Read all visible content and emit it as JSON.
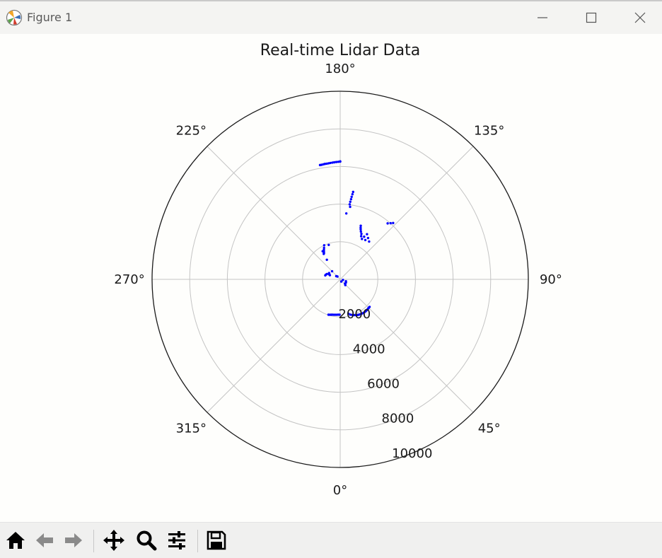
{
  "window": {
    "title": "Figure 1",
    "controls": [
      "minimize",
      "maximize",
      "close"
    ]
  },
  "toolbar": {
    "buttons": [
      {
        "name": "home",
        "icon": "home-icon"
      },
      {
        "name": "back",
        "icon": "arrow-left-icon"
      },
      {
        "name": "forward",
        "icon": "arrow-right-icon"
      },
      {
        "name": "pan",
        "icon": "move-icon"
      },
      {
        "name": "zoom",
        "icon": "magnifier-icon"
      },
      {
        "name": "configure-subplots",
        "icon": "sliders-icon"
      },
      {
        "name": "save",
        "icon": "floppy-disk-icon"
      }
    ]
  },
  "chart_data": {
    "type": "scatter",
    "projection": "polar",
    "title": "Real-time Lidar Data",
    "theta_zero_location": "S",
    "theta_direction": "counterclockwise",
    "theta_ticks": [
      {
        "deg": 0,
        "label": "0°"
      },
      {
        "deg": 45,
        "label": "45°"
      },
      {
        "deg": 90,
        "label": "90°"
      },
      {
        "deg": 135,
        "label": "135°"
      },
      {
        "deg": 180,
        "label": "180°"
      },
      {
        "deg": 225,
        "label": "225°"
      },
      {
        "deg": 270,
        "label": "270°"
      },
      {
        "deg": 315,
        "label": "315°"
      }
    ],
    "r_ticks": [
      {
        "value": 2000,
        "label": "2000"
      },
      {
        "value": 4000,
        "label": "4000"
      },
      {
        "value": 6000,
        "label": "6000"
      },
      {
        "value": 8000,
        "label": "8000"
      },
      {
        "value": 10000,
        "label": "10000"
      }
    ],
    "rlim": [
      0,
      10000
    ],
    "grid": true,
    "marker_color": "#0000ff",
    "series": [
      {
        "theta": [
          13.5,
          16.1,
          18.8,
          21.4,
          23.9,
          26.3,
          28.6,
          30.8,
          33.0,
          35.0,
          37.0,
          38.8,
          40.6,
          42.3,
          43.9,
          45.4,
          46.9,
          -1.0,
          -3.3,
          -5.6,
          -7.9,
          -10.1,
          -12.2,
          -14.3,
          -16.3,
          -18.3,
          71.6,
          48.0,
          59.0,
          26.6,
          42.0,
          78.7,
          63.4,
          142.6,
          146.0,
          149.3,
          147.4,
          150.7,
          151.7,
          154.1,
          155.0,
          156.6,
          157.7,
          158.4,
          159.0,
          136.8,
          138.1,
          139.7,
          171.6,
          171.8,
          172.1,
          172.3,
          172.6,
          172.8,
          172.2,
          174.7,
          180.0,
          180.0,
          180.9,
          181.9,
          182.9,
          183.8,
          184.8,
          185.7,
          186.6,
          187.5,
          188.3,
          189.2,
          190.0,
          205.2,
          207.2,
          208.9,
          210.4,
          211.7,
          212.9,
          198.4,
          214.2,
          231.0,
          224.4,
          225.0,
          248.2,
          243.4,
          248.2,
          240.3,
          245.5,
          255.2,
          251.6,
          212.0
        ],
        "r": [
          1880,
          1950,
          2000,
          2040,
          2080,
          2110,
          2130,
          2150,
          2160,
          2170,
          2170,
          2170,
          2160,
          2160,
          2150,
          2140,
          2140,
          1880,
          1880,
          1890,
          1900,
          1910,
          1920,
          1940,
          1960,
          1980,
          320,
          340,
          350,
          130,
          410,
          150,
          340,
          2530,
          2650,
          2790,
          2480,
          2600,
          2440,
          2550,
          2670,
          2770,
          2870,
          2950,
          3050,
          4110,
          4010,
          3900,
          4700,
          4570,
          4430,
          4300,
          4160,
          4020,
          3890,
          3520,
          6270,
          6260,
          6250,
          6240,
          6230,
          6220,
          6210,
          6200,
          6190,
          6190,
          6180,
          6170,
          6170,
          2000,
          1880,
          1790,
          1710,
          1640,
          1610,
          1930,
          1260,
          270,
          210,
          610,
          590,
          650,
          760,
          680,
          640,
          820,
          800,
          1760
        ]
      }
    ]
  }
}
